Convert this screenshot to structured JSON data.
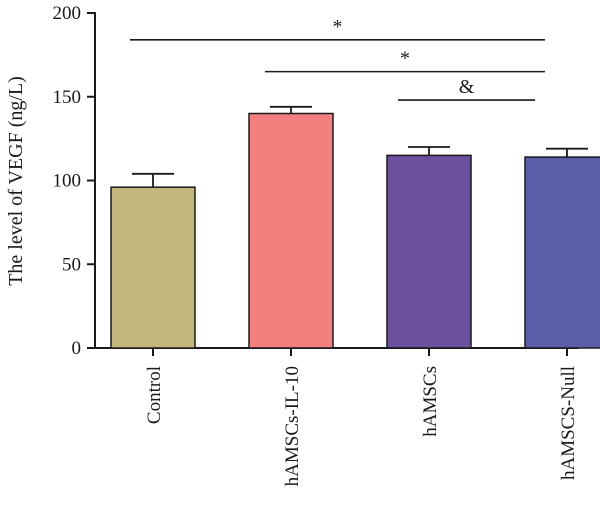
{
  "chart_data": {
    "type": "bar",
    "title": "",
    "xlabel": "",
    "ylabel": "The level of VEGF (ng/L)",
    "ylim": [
      0,
      200
    ],
    "yticks": [
      0,
      50,
      100,
      150,
      200
    ],
    "categories": [
      "Control",
      "hAMSCs-IL-10",
      "hAMSCs",
      "hAMSCS-Null"
    ],
    "values": [
      96,
      140,
      115,
      114
    ],
    "errors": [
      8,
      4,
      5,
      5
    ],
    "colors": [
      "#c2b77d",
      "#f47f7f",
      "#6d4fa0",
      "#5a5ea8"
    ],
    "grid": false,
    "legend": "none",
    "significance": [
      {
        "from": 0,
        "to": 3,
        "y": 184,
        "label": "*"
      },
      {
        "from": 1,
        "to": 3,
        "y": 165,
        "label": "*"
      },
      {
        "from": 2,
        "to": 3,
        "y": 148,
        "label": "&"
      }
    ]
  }
}
